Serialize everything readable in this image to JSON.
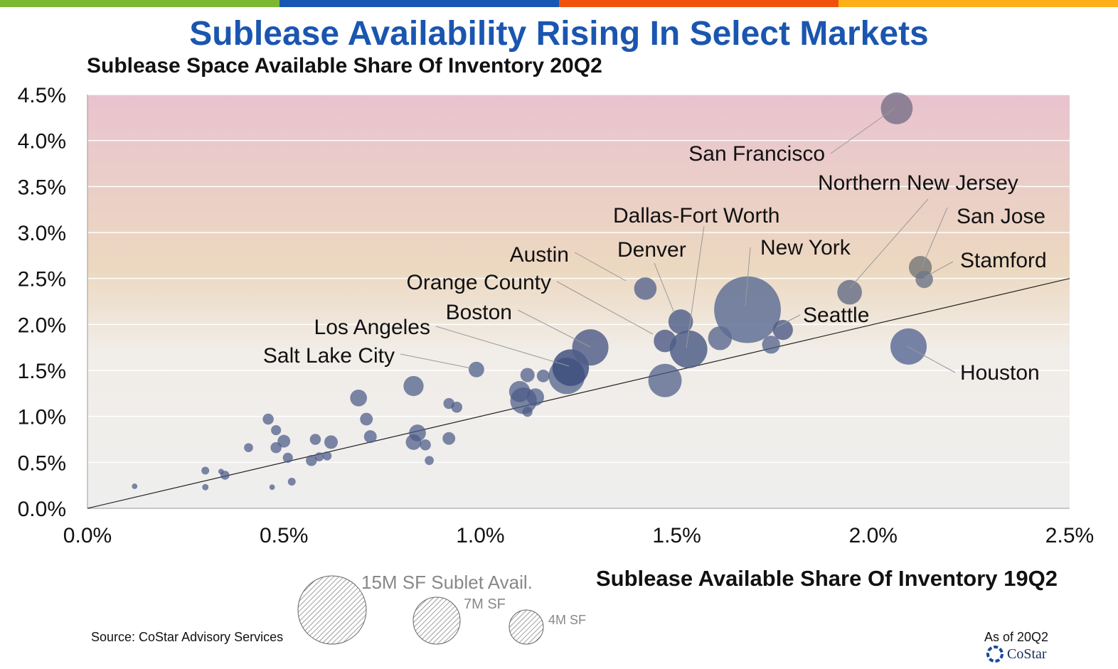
{
  "header": {
    "title": "Sublease Availability Rising In Select Markets",
    "bar_colors": [
      "#7cb832",
      "#1657b6",
      "#f0520e",
      "#fbb019"
    ]
  },
  "footer": {
    "source": "Source: CoStar Advisory Services",
    "as_of": "As of 20Q2",
    "logo_text": "CoStar"
  },
  "size_legend": {
    "entries": [
      {
        "label": "15M SF Sublet Avail.",
        "sf_millions": 15
      },
      {
        "label": "7M SF",
        "sf_millions": 7
      },
      {
        "label": "4M SF",
        "sf_millions": 4
      }
    ]
  },
  "chart_data": {
    "type": "scatter",
    "title": "",
    "xlabel": "Sublease Available Share Of Inventory 19Q2",
    "ylabel": "Sublease Space Available Share Of Inventory 20Q2",
    "xlim": [
      0,
      2.5
    ],
    "ylim": [
      0,
      4.5
    ],
    "x_ticks": [
      "0.0%",
      "0.5%",
      "1.0%",
      "1.5%",
      "2.0%",
      "2.5%"
    ],
    "y_ticks": [
      "0.0%",
      "0.5%",
      "1.0%",
      "1.5%",
      "2.0%",
      "2.5%",
      "3.0%",
      "3.5%",
      "4.0%",
      "4.5%"
    ],
    "reference_line": {
      "from": [
        0,
        0
      ],
      "to": [
        2.5,
        2.5
      ]
    },
    "background_gradient": [
      "#e9c3cf",
      "#ecd8c0",
      "#f0f0f0",
      "#eeeeee"
    ],
    "grid": true,
    "labeled_points": [
      {
        "name": "San Francisco",
        "x": 2.06,
        "y": 4.35,
        "size": 5.0,
        "color": "#7a7289"
      },
      {
        "name": "Northern New Jersey",
        "x": 1.94,
        "y": 2.35,
        "size": 3.0,
        "color": "#666f86"
      },
      {
        "name": "San Jose",
        "x": 2.12,
        "y": 2.62,
        "size": 2.6,
        "color": "#777"
      },
      {
        "name": "Stamford",
        "x": 2.13,
        "y": 2.49,
        "size": 1.5,
        "color": "#6f7688"
      },
      {
        "name": "Dallas-Fort Worth",
        "x": 1.53,
        "y": 1.73,
        "size": 7.0,
        "color": "#4a5a85"
      },
      {
        "name": "Denver",
        "x": 1.51,
        "y": 2.03,
        "size": 3.0,
        "color": "#4f5e87"
      },
      {
        "name": "New York",
        "x": 1.68,
        "y": 2.16,
        "size": 22.0,
        "color": "#5c6c94"
      },
      {
        "name": "Austin",
        "x": 1.42,
        "y": 2.39,
        "size": 2.5,
        "color": "#5a6890"
      },
      {
        "name": "Orange County",
        "x": 1.47,
        "y": 1.82,
        "size": 2.5,
        "color": "#4f5d88"
      },
      {
        "name": "Seattle",
        "x": 1.77,
        "y": 1.94,
        "size": 2.0,
        "color": "#4f5d88"
      },
      {
        "name": "Boston",
        "x": 1.28,
        "y": 1.75,
        "size": 6.5,
        "color": "#4f5d88"
      },
      {
        "name": "Los Angeles",
        "x": 1.23,
        "y": 1.53,
        "size": 6.6,
        "color": "#3b4c7c"
      },
      {
        "name": "Salt Lake City",
        "x": 0.99,
        "y": 1.51,
        "size": 1.2,
        "color": "#5c6b94"
      },
      {
        "name": "Houston",
        "x": 2.09,
        "y": 1.76,
        "size": 6.5,
        "color": "#5a6a96"
      }
    ],
    "points": [
      {
        "x": 0.12,
        "y": 0.24,
        "size": 0.15
      },
      {
        "x": 0.3,
        "y": 0.23,
        "size": 0.2
      },
      {
        "x": 0.3,
        "y": 0.41,
        "size": 0.3
      },
      {
        "x": 0.34,
        "y": 0.4,
        "size": 0.15
      },
      {
        "x": 0.35,
        "y": 0.36,
        "size": 0.4
      },
      {
        "x": 0.41,
        "y": 0.66,
        "size": 0.4
      },
      {
        "x": 0.46,
        "y": 0.97,
        "size": 0.6
      },
      {
        "x": 0.47,
        "y": 0.23,
        "size": 0.15
      },
      {
        "x": 0.48,
        "y": 0.85,
        "size": 0.5
      },
      {
        "x": 0.48,
        "y": 0.66,
        "size": 0.6
      },
      {
        "x": 0.5,
        "y": 0.73,
        "size": 0.8
      },
      {
        "x": 0.51,
        "y": 0.55,
        "size": 0.5
      },
      {
        "x": 0.52,
        "y": 0.29,
        "size": 0.3
      },
      {
        "x": 0.57,
        "y": 0.52,
        "size": 0.6
      },
      {
        "x": 0.58,
        "y": 0.75,
        "size": 0.6
      },
      {
        "x": 0.59,
        "y": 0.56,
        "size": 0.4
      },
      {
        "x": 0.61,
        "y": 0.57,
        "size": 0.4
      },
      {
        "x": 0.62,
        "y": 0.72,
        "size": 0.9
      },
      {
        "x": 0.69,
        "y": 1.2,
        "size": 1.4
      },
      {
        "x": 0.71,
        "y": 0.97,
        "size": 0.8
      },
      {
        "x": 0.72,
        "y": 0.78,
        "size": 0.8
      },
      {
        "x": 0.83,
        "y": 1.33,
        "size": 2.0
      },
      {
        "x": 0.83,
        "y": 0.72,
        "size": 1.2
      },
      {
        "x": 0.84,
        "y": 0.82,
        "size": 1.4
      },
      {
        "x": 0.86,
        "y": 0.69,
        "size": 0.6
      },
      {
        "x": 0.87,
        "y": 0.52,
        "size": 0.4
      },
      {
        "x": 0.92,
        "y": 1.14,
        "size": 0.6
      },
      {
        "x": 0.92,
        "y": 0.76,
        "size": 0.8
      },
      {
        "x": 0.94,
        "y": 1.1,
        "size": 0.6
      },
      {
        "x": 1.1,
        "y": 1.27,
        "size": 2.2
      },
      {
        "x": 1.11,
        "y": 1.17,
        "size": 3.5
      },
      {
        "x": 1.12,
        "y": 1.45,
        "size": 1.0
      },
      {
        "x": 1.12,
        "y": 1.05,
        "size": 0.5
      },
      {
        "x": 1.14,
        "y": 1.21,
        "size": 1.5
      },
      {
        "x": 1.16,
        "y": 1.44,
        "size": 0.8
      },
      {
        "x": 1.22,
        "y": 1.44,
        "size": 6.5
      },
      {
        "x": 1.47,
        "y": 1.39,
        "size": 5.5
      },
      {
        "x": 1.61,
        "y": 1.85,
        "size": 2.8
      },
      {
        "x": 1.74,
        "y": 1.78,
        "size": 1.6
      }
    ]
  }
}
